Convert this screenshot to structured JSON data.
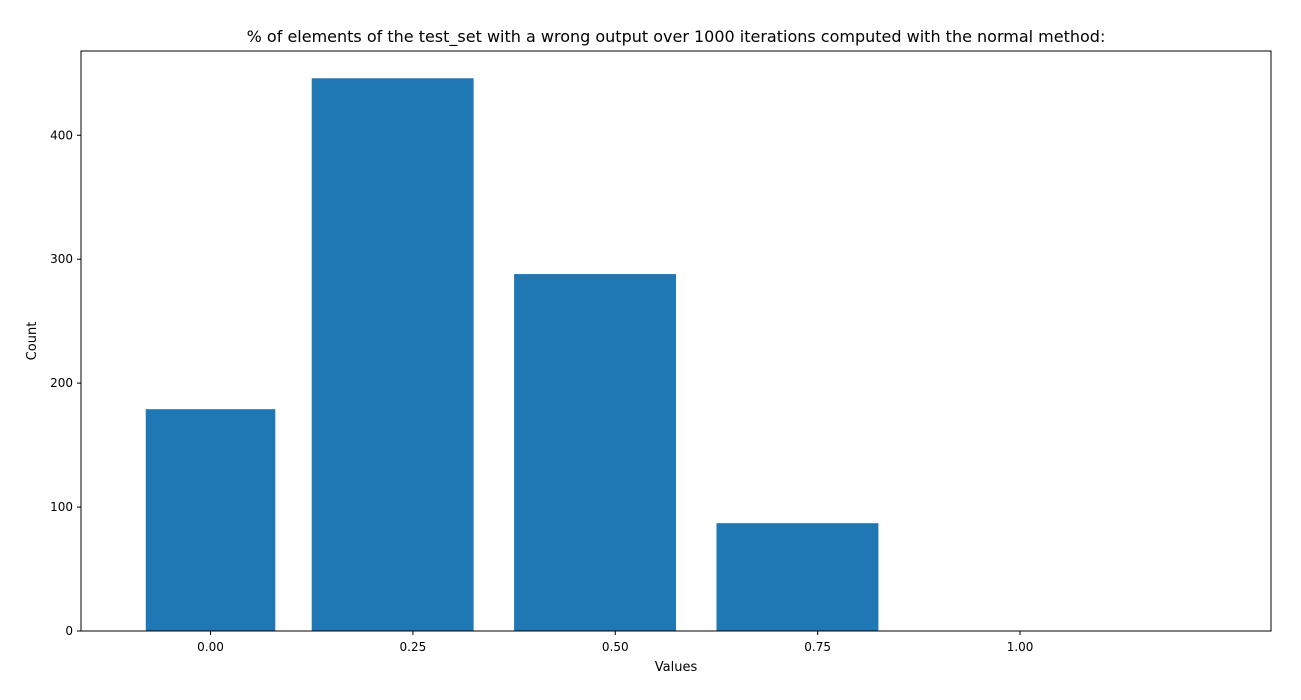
{
  "chart_data": {
    "type": "bar",
    "title": "% of elements of the test_set with a wrong output over 1000 iterations computed with the normal method:",
    "xlabel": "Values",
    "ylabel": "Count",
    "color": "#1f77b4",
    "xlim": [
      -0.16,
      1.31
    ],
    "ylim": [
      0,
      468
    ],
    "x_ticks": [
      0.0,
      0.25,
      0.5,
      0.75,
      1.0
    ],
    "x_tick_labels": [
      "0.00",
      "0.25",
      "0.50",
      "0.75",
      "1.00"
    ],
    "y_ticks": [
      0,
      100,
      200,
      300,
      400
    ],
    "y_tick_labels": [
      "0",
      "100",
      "200",
      "300",
      "400"
    ],
    "bars": [
      {
        "x_start": -0.08,
        "x_end": 0.08,
        "value": 179
      },
      {
        "x_start": 0.125,
        "x_end": 0.325,
        "value": 446
      },
      {
        "x_start": 0.375,
        "x_end": 0.575,
        "value": 288
      },
      {
        "x_start": 0.625,
        "x_end": 0.825,
        "value": 87
      }
    ],
    "grid": false,
    "legend": false
  }
}
